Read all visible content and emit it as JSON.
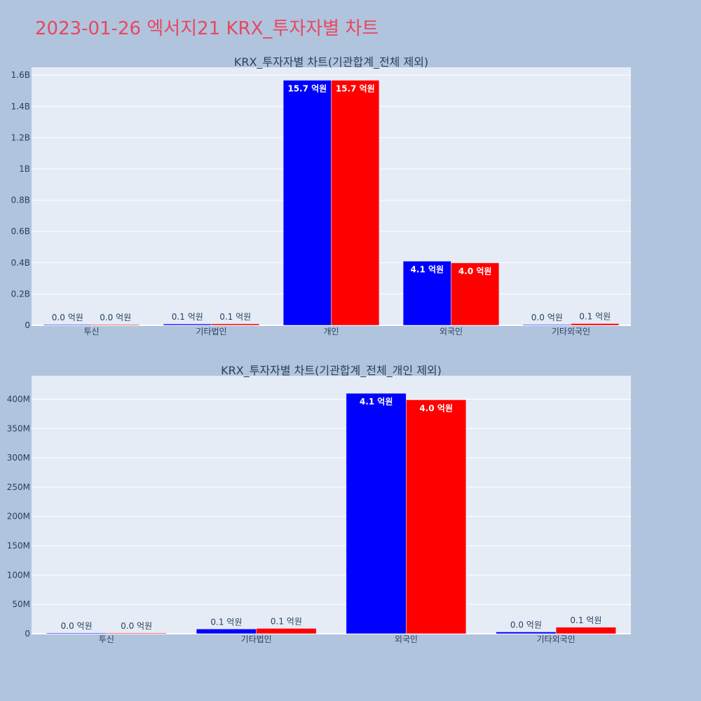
{
  "page": {
    "title": "2023-01-26 엑서지21 KRX_투자자별 차트"
  },
  "colors": {
    "series_1": "#0000ff",
    "series_2": "#ff0000",
    "plot_bg": "#e5ecf6",
    "page_bg": "#b0c4de",
    "title": "#e8475f"
  },
  "chart_data": [
    {
      "type": "bar",
      "title": "KRX_투자자별 차트(기관합계_전체 제외)",
      "categories": [
        "투신",
        "기타법인",
        "개인",
        "외국인",
        "기타외국인"
      ],
      "ylim": [
        0,
        1650000000
      ],
      "yticks": [
        0,
        200000000,
        400000000,
        600000000,
        800000000,
        1000000000,
        1200000000,
        1400000000,
        1600000000
      ],
      "ytick_labels": [
        "0",
        "0.2B",
        "0.4B",
        "0.6B",
        "0.8B",
        "1B",
        "1.2B",
        "1.4B",
        "1.6B"
      ],
      "grid": true,
      "series": [
        {
          "color": "#0000ff",
          "values": [
            1000000,
            8000000,
            1567000000,
            410000000,
            3000000
          ],
          "labels": [
            "0.0 억원",
            "0.1 억원",
            "15.7 억원",
            "4.1 억원",
            "0.0 억원"
          ]
        },
        {
          "color": "#ff0000",
          "values": [
            1000000,
            9000000,
            1567000000,
            399000000,
            11000000
          ],
          "labels": [
            "0.0 억원",
            "0.1 억원",
            "15.7 억원",
            "4.0 억원",
            "0.1 억원"
          ]
        }
      ]
    },
    {
      "type": "bar",
      "title": "KRX_투자자별 차트(기관합계_전체_개인 제외)",
      "categories": [
        "투신",
        "기타법인",
        "외국인",
        "기타외국인"
      ],
      "ylim": [
        0,
        440000000
      ],
      "yticks": [
        0,
        50000000,
        100000000,
        150000000,
        200000000,
        250000000,
        300000000,
        350000000,
        400000000
      ],
      "ytick_labels": [
        "0",
        "50M",
        "100M",
        "150M",
        "200M",
        "250M",
        "300M",
        "350M",
        "400M"
      ],
      "grid": true,
      "series": [
        {
          "color": "#0000ff",
          "values": [
            1000000,
            8000000,
            410000000,
            3000000
          ],
          "labels": [
            "0.0 억원",
            "0.1 억원",
            "4.1 억원",
            "0.0 억원"
          ]
        },
        {
          "color": "#ff0000",
          "values": [
            1000000,
            9000000,
            399000000,
            11000000
          ],
          "labels": [
            "0.0 억원",
            "0.1 억원",
            "4.0 억원",
            "0.1 억원"
          ]
        }
      ]
    }
  ]
}
